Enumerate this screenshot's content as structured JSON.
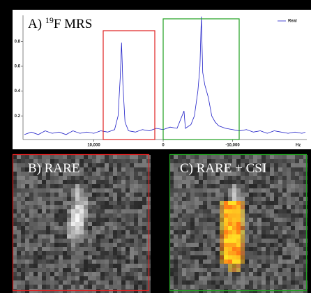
{
  "chart_data": {
    "type": "line",
    "title": [
      "A) ",
      "19",
      "F MRS"
    ],
    "x_label": "Hz",
    "x": [
      20000,
      19000,
      18000,
      17000,
      16000,
      15000,
      14000,
      13000,
      12000,
      11000,
      10000,
      9000,
      8000,
      7000,
      6500,
      6200,
      6000,
      5800,
      5500,
      5000,
      4000,
      3000,
      2000,
      1000,
      0,
      -1000,
      -2000,
      -3000,
      -3200,
      -4000,
      -4500,
      -5000,
      -5300,
      -5500,
      -5700,
      -6000,
      -6500,
      -7000,
      -7500,
      -8000,
      -9000,
      -10000,
      -11000,
      -12000,
      -13000,
      -14000,
      -15000,
      -16000,
      -17000,
      -18000,
      -19000,
      -20000,
      -20500
    ],
    "series": [
      {
        "name": "Real",
        "color": "#1f1fc8",
        "values": [
          0.05,
          0.07,
          0.05,
          0.08,
          0.06,
          0.07,
          0.05,
          0.08,
          0.06,
          0.07,
          0.06,
          0.08,
          0.07,
          0.09,
          0.2,
          0.5,
          0.79,
          0.45,
          0.15,
          0.08,
          0.07,
          0.09,
          0.08,
          0.1,
          0.09,
          0.11,
          0.1,
          0.24,
          0.1,
          0.13,
          0.2,
          0.4,
          0.6,
          1.0,
          0.55,
          0.45,
          0.35,
          0.2,
          0.15,
          0.12,
          0.1,
          0.09,
          0.08,
          0.09,
          0.07,
          0.08,
          0.06,
          0.08,
          0.07,
          0.06,
          0.07,
          0.06,
          0.07
        ]
      }
    ],
    "xlim": [
      20200,
      -20700
    ],
    "ylim": [
      0.01,
      1.01
    ],
    "xticks": [
      {
        "value": 10000,
        "label": "10,000"
      },
      0,
      {
        "value": -10000,
        "label": "-10,000"
      }
    ],
    "yticks": [
      0.2,
      0.4,
      0.6,
      0.8
    ],
    "legend": "upper right"
  },
  "panels": [
    {
      "label": "B) RARE"
    },
    {
      "label": "C) RARE + CSI"
    }
  ]
}
